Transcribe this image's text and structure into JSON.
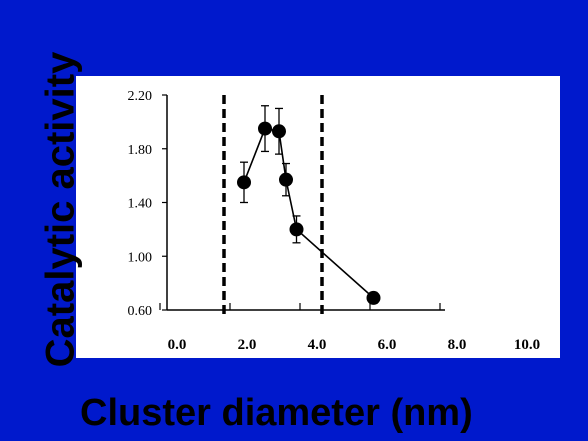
{
  "chart_data": {
    "type": "line",
    "title": "",
    "xlabel": "Cluster diameter (nm)",
    "ylabel": "Catalytic activity",
    "xlim": [
      0.0,
      10.0
    ],
    "ylim": [
      0.6,
      2.2
    ],
    "x_ticks": [
      "0.0",
      "2.0",
      "4.0",
      "6.0",
      "8.0",
      "10.0"
    ],
    "y_ticks": [
      "0.60",
      "1.00",
      "1.40",
      "1.80",
      "2.20"
    ],
    "series": [
      {
        "x": [
          2.4,
          3.0,
          3.4,
          3.6,
          3.9,
          6.1
        ],
        "y": [
          1.55,
          1.95,
          1.93,
          1.57,
          1.2,
          0.69
        ],
        "error": [
          0.15,
          0.17,
          0.17,
          0.12,
          0.1,
          0.04
        ]
      }
    ],
    "vertical_dashed_lines_x": [
      2.0,
      4.4
    ],
    "grid": false,
    "colors": {
      "marker": "#000000",
      "line": "#000000",
      "background": "#0019cc",
      "plot_background": "#ffffff"
    }
  }
}
